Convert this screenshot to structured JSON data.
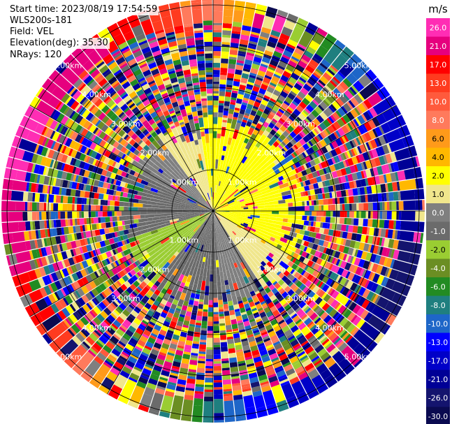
{
  "header": {
    "start_time": "Start time: 2023/08/19 17:54:59",
    "instrument": "WLS200s-181",
    "field": "Field: VEL",
    "elevation": "Elevation(deg): 35.30",
    "nrays": "NRays: 120"
  },
  "colorbar": {
    "unit": "m/s",
    "ticks": [
      "26.0",
      "21.0",
      "17.0",
      "13.0",
      "10.0",
      "8.0",
      "6.0",
      "4.0",
      "2.0",
      "1.0",
      "0.0",
      "-1.0",
      "-2.0",
      "-4.0",
      "-6.0",
      "-8.0",
      "-10.0",
      "-13.0",
      "-17.0",
      "-21.0",
      "-26.0",
      "-30.0"
    ],
    "colors": [
      "#ff2db4",
      "#e6007e",
      "#ff0000",
      "#ff3b1f",
      "#ff5a3c",
      "#ff7a5c",
      "#ff9a1a",
      "#ffb800",
      "#ffff00",
      "#f0e68c",
      "#7f7f7f",
      "#6b6b6b",
      "#9acd32",
      "#6b8e23",
      "#228b22",
      "#1f7f7f",
      "#1e66c8",
      "#0000ff",
      "#0000c8",
      "#000096",
      "#14146e",
      "#0a0a50"
    ]
  },
  "chart_data": {
    "type": "polar-ppi",
    "field": "VEL",
    "unit": "m/s",
    "nrays": 120,
    "elevation_deg": 35.3,
    "range_rings_km": [
      "1.00km",
      "2.00km",
      "3.00km",
      "4.00km",
      "5.00km"
    ],
    "color_scale_m_s": [
      26.0,
      21.0,
      17.0,
      13.0,
      10.0,
      8.0,
      6.0,
      4.0,
      2.0,
      1.0,
      0.0,
      -1.0,
      -2.0,
      -4.0,
      -6.0,
      -8.0,
      -10.0,
      -13.0,
      -17.0,
      -21.0,
      -26.0,
      -30.0
    ]
  }
}
